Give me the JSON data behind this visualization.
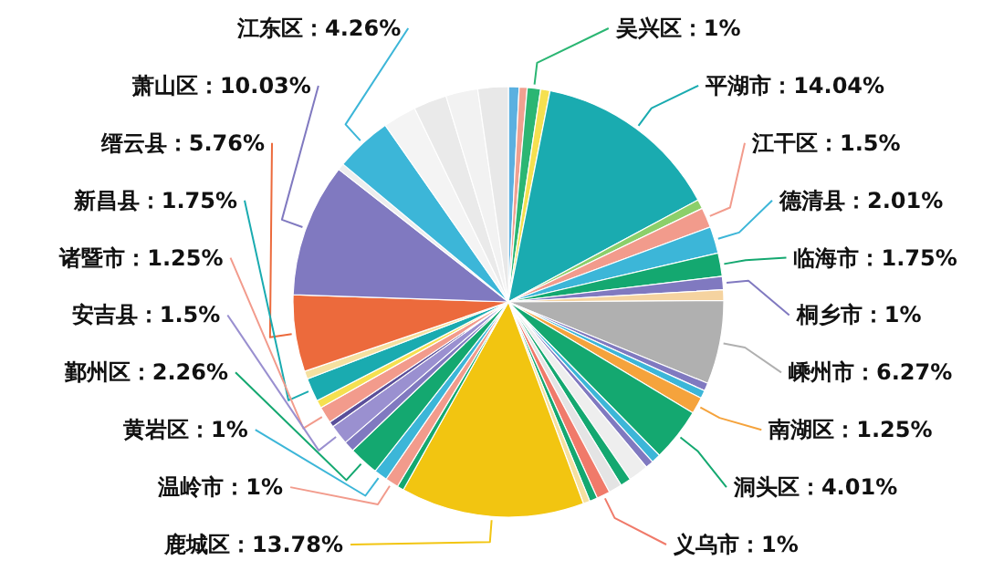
{
  "chart_data": {
    "type": "pie",
    "categories": [
      null,
      null,
      "吴兴区",
      null,
      "平湖市",
      null,
      "江干区",
      "德清县",
      "临海市",
      "桐乡市",
      null,
      "嵊州市",
      null,
      null,
      "南湖区",
      "洞头区",
      null,
      null,
      null,
      null,
      null,
      "义乌市",
      null,
      null,
      "鹿城区",
      null,
      "温岭市",
      "黄岩区",
      "鄞州区",
      null,
      "安吉县",
      null,
      "诸暨市",
      null,
      "新昌县",
      null,
      "缙云县",
      "萧山区",
      null,
      "江东区",
      null,
      null,
      null,
      null
    ],
    "values": [
      0.8,
      0.6,
      1,
      0.7,
      14.04,
      0.7,
      1.5,
      2.01,
      1.75,
      1,
      0.8,
      6.27,
      0.6,
      0.6,
      1.25,
      4.01,
      0.7,
      0.6,
      1.5,
      0.8,
      1.0,
      1,
      0.6,
      0.5,
      13.78,
      0.5,
      1,
      1,
      2.26,
      0.8,
      1.5,
      0.4,
      1.25,
      0.6,
      1.75,
      0.6,
      5.76,
      10.03,
      0.5,
      4.26,
      2.5,
      2.5,
      2.4,
      2.28
    ],
    "colors": [
      "#5bb0e0",
      "#f0a090",
      "#2bb673",
      "#f5e050",
      "#1aabb0",
      "#8ccf6a",
      "#f29b8c",
      "#3cb6d8",
      "#14a870",
      "#8079c0",
      "#f5d3a0",
      "#b0b0b0",
      "#8079c0",
      "#3cb6d8",
      "#f5a33c",
      "#14a870",
      "#3cb6d8",
      "#8079c0",
      "#eeeeee",
      "#14a870",
      "#e4e4e4",
      "#f07a6a",
      "#14a870",
      "#f5e0a0",
      "#f2c511",
      "#14a870",
      "#f29b8c",
      "#3cb6d8",
      "#14a870",
      "#8079c0",
      "#9a90d0",
      "#5a4f9a",
      "#f29b8c",
      "#f5e050",
      "#1aabb0",
      "#f5e0a0",
      "#ec6a3c",
      "#8079c0",
      "#eeeeee",
      "#3cb6d8",
      "#f4f4f4",
      "#eaeaea",
      "#f2f2f2",
      "#e8e8e8"
    ],
    "value_labels": [
      null,
      null,
      "1%",
      null,
      "14.04%",
      null,
      "1.5%",
      "2.01%",
      "1.75%",
      "1%",
      null,
      "6.27%",
      null,
      null,
      "1.25%",
      "4.01%",
      null,
      null,
      null,
      null,
      null,
      "1%",
      null,
      null,
      "13.78%",
      null,
      "1%",
      "1%",
      "2.26%",
      null,
      "1.5%",
      null,
      "1.25%",
      null,
      "1.75%",
      null,
      "5.76%",
      "10.03%",
      null,
      "4.26%",
      null,
      null,
      null,
      null
    ]
  }
}
